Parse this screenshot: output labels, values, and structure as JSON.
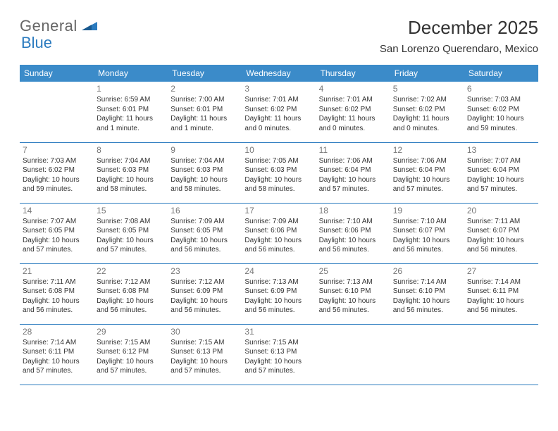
{
  "brand": {
    "name_part1": "General",
    "name_part2": "Blue"
  },
  "title": "December 2025",
  "location": "San Lorenzo Querendaro, Mexico",
  "colors": {
    "header_bg": "#3b8bc9",
    "header_text": "#ffffff",
    "border": "#2b7bbf",
    "daynum": "#777777",
    "body_text": "#333333",
    "brand_gray": "#666666",
    "brand_blue": "#2b7bbf",
    "page_bg": "#ffffff"
  },
  "typography": {
    "title_fontsize": 26,
    "location_fontsize": 15,
    "header_fontsize": 12,
    "daynum_fontsize": 12,
    "body_fontsize": 10
  },
  "day_labels": [
    "Sunday",
    "Monday",
    "Tuesday",
    "Wednesday",
    "Thursday",
    "Friday",
    "Saturday"
  ],
  "weeks": [
    [
      {
        "num": "",
        "sunrise": "",
        "sunset": "",
        "daylight": ""
      },
      {
        "num": "1",
        "sunrise": "Sunrise: 6:59 AM",
        "sunset": "Sunset: 6:01 PM",
        "daylight": "Daylight: 11 hours and 1 minute."
      },
      {
        "num": "2",
        "sunrise": "Sunrise: 7:00 AM",
        "sunset": "Sunset: 6:01 PM",
        "daylight": "Daylight: 11 hours and 1 minute."
      },
      {
        "num": "3",
        "sunrise": "Sunrise: 7:01 AM",
        "sunset": "Sunset: 6:02 PM",
        "daylight": "Daylight: 11 hours and 0 minutes."
      },
      {
        "num": "4",
        "sunrise": "Sunrise: 7:01 AM",
        "sunset": "Sunset: 6:02 PM",
        "daylight": "Daylight: 11 hours and 0 minutes."
      },
      {
        "num": "5",
        "sunrise": "Sunrise: 7:02 AM",
        "sunset": "Sunset: 6:02 PM",
        "daylight": "Daylight: 11 hours and 0 minutes."
      },
      {
        "num": "6",
        "sunrise": "Sunrise: 7:03 AM",
        "sunset": "Sunset: 6:02 PM",
        "daylight": "Daylight: 10 hours and 59 minutes."
      }
    ],
    [
      {
        "num": "7",
        "sunrise": "Sunrise: 7:03 AM",
        "sunset": "Sunset: 6:02 PM",
        "daylight": "Daylight: 10 hours and 59 minutes."
      },
      {
        "num": "8",
        "sunrise": "Sunrise: 7:04 AM",
        "sunset": "Sunset: 6:03 PM",
        "daylight": "Daylight: 10 hours and 58 minutes."
      },
      {
        "num": "9",
        "sunrise": "Sunrise: 7:04 AM",
        "sunset": "Sunset: 6:03 PM",
        "daylight": "Daylight: 10 hours and 58 minutes."
      },
      {
        "num": "10",
        "sunrise": "Sunrise: 7:05 AM",
        "sunset": "Sunset: 6:03 PM",
        "daylight": "Daylight: 10 hours and 58 minutes."
      },
      {
        "num": "11",
        "sunrise": "Sunrise: 7:06 AM",
        "sunset": "Sunset: 6:04 PM",
        "daylight": "Daylight: 10 hours and 57 minutes."
      },
      {
        "num": "12",
        "sunrise": "Sunrise: 7:06 AM",
        "sunset": "Sunset: 6:04 PM",
        "daylight": "Daylight: 10 hours and 57 minutes."
      },
      {
        "num": "13",
        "sunrise": "Sunrise: 7:07 AM",
        "sunset": "Sunset: 6:04 PM",
        "daylight": "Daylight: 10 hours and 57 minutes."
      }
    ],
    [
      {
        "num": "14",
        "sunrise": "Sunrise: 7:07 AM",
        "sunset": "Sunset: 6:05 PM",
        "daylight": "Daylight: 10 hours and 57 minutes."
      },
      {
        "num": "15",
        "sunrise": "Sunrise: 7:08 AM",
        "sunset": "Sunset: 6:05 PM",
        "daylight": "Daylight: 10 hours and 57 minutes."
      },
      {
        "num": "16",
        "sunrise": "Sunrise: 7:09 AM",
        "sunset": "Sunset: 6:05 PM",
        "daylight": "Daylight: 10 hours and 56 minutes."
      },
      {
        "num": "17",
        "sunrise": "Sunrise: 7:09 AM",
        "sunset": "Sunset: 6:06 PM",
        "daylight": "Daylight: 10 hours and 56 minutes."
      },
      {
        "num": "18",
        "sunrise": "Sunrise: 7:10 AM",
        "sunset": "Sunset: 6:06 PM",
        "daylight": "Daylight: 10 hours and 56 minutes."
      },
      {
        "num": "19",
        "sunrise": "Sunrise: 7:10 AM",
        "sunset": "Sunset: 6:07 PM",
        "daylight": "Daylight: 10 hours and 56 minutes."
      },
      {
        "num": "20",
        "sunrise": "Sunrise: 7:11 AM",
        "sunset": "Sunset: 6:07 PM",
        "daylight": "Daylight: 10 hours and 56 minutes."
      }
    ],
    [
      {
        "num": "21",
        "sunrise": "Sunrise: 7:11 AM",
        "sunset": "Sunset: 6:08 PM",
        "daylight": "Daylight: 10 hours and 56 minutes."
      },
      {
        "num": "22",
        "sunrise": "Sunrise: 7:12 AM",
        "sunset": "Sunset: 6:08 PM",
        "daylight": "Daylight: 10 hours and 56 minutes."
      },
      {
        "num": "23",
        "sunrise": "Sunrise: 7:12 AM",
        "sunset": "Sunset: 6:09 PM",
        "daylight": "Daylight: 10 hours and 56 minutes."
      },
      {
        "num": "24",
        "sunrise": "Sunrise: 7:13 AM",
        "sunset": "Sunset: 6:09 PM",
        "daylight": "Daylight: 10 hours and 56 minutes."
      },
      {
        "num": "25",
        "sunrise": "Sunrise: 7:13 AM",
        "sunset": "Sunset: 6:10 PM",
        "daylight": "Daylight: 10 hours and 56 minutes."
      },
      {
        "num": "26",
        "sunrise": "Sunrise: 7:14 AM",
        "sunset": "Sunset: 6:10 PM",
        "daylight": "Daylight: 10 hours and 56 minutes."
      },
      {
        "num": "27",
        "sunrise": "Sunrise: 7:14 AM",
        "sunset": "Sunset: 6:11 PM",
        "daylight": "Daylight: 10 hours and 56 minutes."
      }
    ],
    [
      {
        "num": "28",
        "sunrise": "Sunrise: 7:14 AM",
        "sunset": "Sunset: 6:11 PM",
        "daylight": "Daylight: 10 hours and 57 minutes."
      },
      {
        "num": "29",
        "sunrise": "Sunrise: 7:15 AM",
        "sunset": "Sunset: 6:12 PM",
        "daylight": "Daylight: 10 hours and 57 minutes."
      },
      {
        "num": "30",
        "sunrise": "Sunrise: 7:15 AM",
        "sunset": "Sunset: 6:13 PM",
        "daylight": "Daylight: 10 hours and 57 minutes."
      },
      {
        "num": "31",
        "sunrise": "Sunrise: 7:15 AM",
        "sunset": "Sunset: 6:13 PM",
        "daylight": "Daylight: 10 hours and 57 minutes."
      },
      {
        "num": "",
        "sunrise": "",
        "sunset": "",
        "daylight": ""
      },
      {
        "num": "",
        "sunrise": "",
        "sunset": "",
        "daylight": ""
      },
      {
        "num": "",
        "sunrise": "",
        "sunset": "",
        "daylight": ""
      }
    ]
  ]
}
